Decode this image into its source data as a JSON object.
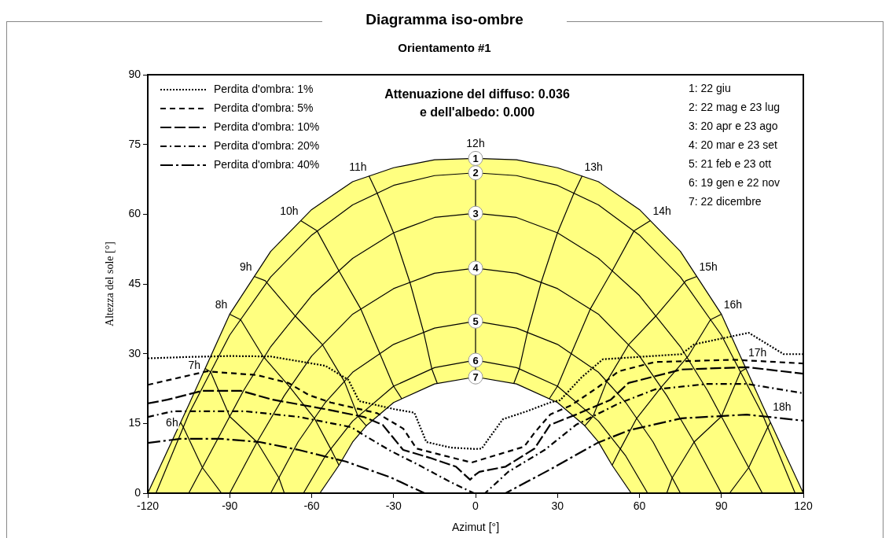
{
  "chart_data": {
    "type": "line",
    "title": "Diagramma iso-ombre",
    "subtitle": "Orientamento #1",
    "xlabel": "Azimut [°]",
    "ylabel": "Altezza del sole [°]",
    "xlim": [
      -120,
      120
    ],
    "xticks": [
      -120,
      -90,
      -60,
      -30,
      0,
      30,
      60,
      90,
      120
    ],
    "ylim": [
      0,
      90
    ],
    "yticks": [
      0,
      15,
      30,
      45,
      60,
      75,
      90
    ],
    "grid": false,
    "legend": "top left",
    "annotations": [
      "Attenuazione del diffuso: 0.036\ne dell'albedo: 0.000",
      "1: 22 giu",
      "2: 22 mag e 23 lug",
      "3: 20 apr e 23 ago",
      "4: 20 mar e 23 set",
      "5: 21 feb e 23 ott",
      "6: 19 gen e 22 nov",
      "7: 22 dicembre"
    ],
    "series": [
      {
        "name": "1",
        "type": "area",
        "color": "#ffff80",
        "x": [
          -120,
          -105,
          -90,
          -75,
          -60,
          -45,
          -30,
          -15,
          0,
          15,
          30,
          45,
          60,
          75,
          90,
          105,
          120
        ],
        "values": [
          0,
          19,
          38.5,
          52,
          61,
          67,
          70,
          71.7,
          72,
          71.7,
          70,
          67,
          61,
          52,
          38.5,
          19,
          0
        ]
      },
      {
        "name": "2",
        "type": "line",
        "color": "#000000",
        "x": [
          -117,
          -105,
          -90,
          -75,
          -60,
          -45,
          -30,
          -15,
          0,
          15,
          30,
          45,
          60,
          75,
          90,
          105,
          117
        ],
        "values": [
          0,
          17,
          34,
          46.5,
          55.5,
          62,
          66.2,
          68.3,
          68.9,
          68.3,
          66.2,
          62,
          55.5,
          46.5,
          34,
          17,
          0
        ]
      },
      {
        "name": "3",
        "type": "line",
        "color": "#000000",
        "x": [
          -105,
          -95,
          -85,
          -75,
          -60,
          -45,
          -30,
          -15,
          0,
          15,
          30,
          45,
          60,
          75,
          85,
          95,
          105
        ],
        "values": [
          0,
          11,
          22,
          31.5,
          42.5,
          50.5,
          56,
          59.3,
          60.2,
          59.3,
          56,
          50.5,
          42.5,
          31.5,
          22,
          11,
          0
        ]
      },
      {
        "name": "4",
        "type": "line",
        "color": "#000000",
        "x": [
          -90,
          -80,
          -70,
          -60,
          -45,
          -30,
          -15,
          0,
          15,
          30,
          45,
          60,
          70,
          80,
          90
        ],
        "values": [
          0,
          11,
          21,
          29.5,
          38.5,
          44,
          47.3,
          48.4,
          47.3,
          44,
          38.5,
          29.5,
          21,
          11,
          0
        ]
      },
      {
        "name": "5",
        "type": "line",
        "color": "#000000",
        "x": [
          -75,
          -65,
          -55,
          -45,
          -30,
          -15,
          0,
          15,
          30,
          45,
          55,
          65,
          75
        ],
        "values": [
          0,
          11,
          19.5,
          26,
          32,
          35.5,
          37,
          35.5,
          32,
          26,
          19.5,
          11,
          0
        ]
      },
      {
        "name": "6",
        "type": "line",
        "color": "#000000",
        "x": [
          -63,
          -55,
          -45,
          -30,
          -15,
          0,
          15,
          30,
          45,
          55,
          63
        ],
        "values": [
          0,
          8,
          15.5,
          23,
          27,
          28.6,
          27,
          23,
          15.5,
          8,
          0
        ]
      },
      {
        "name": "7",
        "type": "area",
        "color": "#ffffff",
        "x": [
          -57,
          -50,
          -45,
          -40,
          -30,
          -15,
          0,
          15,
          30,
          40,
          45,
          50,
          57
        ],
        "values": [
          0,
          6,
          11,
          14.5,
          19.5,
          23.5,
          25,
          23.5,
          19.5,
          14.5,
          11,
          6,
          0
        ]
      },
      {
        "name": "6h",
        "type": "line",
        "color": "#000000",
        "x": [
          -108,
          -107,
          -100,
          -93
        ],
        "values": [
          15.2,
          14.2,
          5.5,
          0
        ]
      },
      {
        "name": "7h",
        "type": "line",
        "color": "#000000",
        "x": [
          -99,
          -97,
          -90,
          -80,
          -72,
          -70
        ],
        "values": [
          26.8,
          26.1,
          16.5,
          11,
          3.3,
          0
        ]
      },
      {
        "name": "8h",
        "type": "line",
        "color": "#000000",
        "x": [
          -90,
          -86,
          -78,
          -68,
          -59,
          -53,
          -50
        ],
        "values": [
          38.5,
          37.3,
          29.6,
          22.8,
          16.1,
          9.5,
          6
        ]
      },
      {
        "name": "9h",
        "type": "line",
        "color": "#000000",
        "x": [
          -81,
          -77,
          -66,
          -56,
          -48,
          -43,
          -40
        ],
        "values": [
          46.6,
          45.7,
          38.1,
          31.9,
          24,
          16.5,
          14.5
        ]
      },
      {
        "name": "10h",
        "type": "line",
        "color": "#000000",
        "x": [
          -64,
          -58,
          -50,
          -42,
          -35,
          -30,
          -27
        ],
        "values": [
          58.6,
          56.4,
          47.8,
          39.6,
          30,
          23,
          20.3
        ]
      },
      {
        "name": "11h",
        "type": "line",
        "color": "#000000",
        "x": [
          -39,
          -36,
          -30,
          -24,
          -19,
          -16,
          -14
        ],
        "values": [
          68.2,
          64.5,
          56,
          45.3,
          34.6,
          26.7,
          23.6
        ]
      },
      {
        "name": "12h",
        "type": "line",
        "color": "#000000",
        "x": [
          0,
          0,
          0,
          0,
          0,
          0,
          0
        ],
        "values": [
          72,
          68.9,
          60.2,
          48.4,
          37,
          28.6,
          25
        ]
      },
      {
        "name": "13h",
        "type": "line",
        "color": "#000000",
        "x": [
          39,
          36,
          30,
          24,
          19,
          16,
          14
        ],
        "values": [
          68.2,
          64.5,
          56,
          45.3,
          34.6,
          26.7,
          23.6
        ]
      },
      {
        "name": "14h",
        "type": "line",
        "color": "#000000",
        "x": [
          64,
          58,
          50,
          42,
          35,
          30,
          27
        ],
        "values": [
          58.6,
          56.4,
          47.8,
          39.6,
          30,
          23,
          20.3
        ]
      },
      {
        "name": "15h",
        "type": "line",
        "color": "#000000",
        "x": [
          81,
          77,
          66,
          56,
          48,
          43,
          40
        ],
        "values": [
          46.6,
          45.7,
          38.1,
          31.9,
          24,
          16.5,
          14.5
        ]
      },
      {
        "name": "16h",
        "type": "line",
        "color": "#000000",
        "x": [
          90,
          86,
          78,
          68,
          59,
          53,
          50
        ],
        "values": [
          38.5,
          37.3,
          29.6,
          22.8,
          16.1,
          9.5,
          6
        ]
      },
      {
        "name": "17h",
        "type": "line",
        "color": "#000000",
        "x": [
          99,
          97,
          90,
          80,
          72,
          70
        ],
        "values": [
          26.8,
          26.1,
          16.5,
          11,
          3.3,
          0
        ]
      },
      {
        "name": "18h",
        "type": "line",
        "color": "#000000",
        "x": [
          108,
          107,
          100,
          93
        ],
        "values": [
          15.2,
          14.2,
          5.5,
          0
        ]
      },
      {
        "name": "Perdita d'ombra: 1%",
        "type": "line",
        "color": "#000000",
        "line_style": "dotted",
        "x": [
          -120,
          -105,
          -90,
          -75,
          -55,
          -46.6,
          -42.6,
          -30,
          -22.4,
          -18,
          -9,
          0,
          2.3,
          4.3,
          10,
          18.7,
          27.3,
          31,
          38.8,
          46.6,
          75.4,
          80,
          100,
          112.8,
          120
        ],
        "values": [
          29,
          29.3,
          29.5,
          29.4,
          27.4,
          24.4,
          19.8,
          18.1,
          17.3,
          11,
          9.8,
          9.5,
          9.6,
          11.3,
          15.9,
          17.6,
          19.5,
          20,
          24.9,
          28.8,
          29.9,
          32,
          34.5,
          29.9,
          29.9
        ]
      },
      {
        "name": "Perdita d'ombra: 5%",
        "type": "line",
        "color": "#000000",
        "line_style": "dashed",
        "x": [
          -120,
          -98.4,
          -80,
          -68.5,
          -61,
          -53,
          -36,
          -26.5,
          -21.6,
          -7,
          -1.4,
          17.8,
          21.6,
          27.3,
          35,
          44.6,
          52.4,
          65.6,
          94.4,
          120
        ],
        "values": [
          23.3,
          26.2,
          25.4,
          23.7,
          21.1,
          19.5,
          17.2,
          13.9,
          9.6,
          7.4,
          6.6,
          10,
          13,
          16.9,
          18.9,
          22.7,
          26.2,
          28.2,
          28.7,
          27.9
        ]
      },
      {
        "name": "Perdita d'ombra: 10%",
        "type": "line",
        "color": "#000000",
        "line_style": "longdash",
        "x": [
          -120,
          -112.8,
          -100.2,
          -85.8,
          -74.2,
          -55.3,
          -40.9,
          -34,
          -26.5,
          -16.7,
          -7.2,
          -2,
          0,
          1.4,
          11,
          21.6,
          27.3,
          36.8,
          49.5,
          56,
          75.4,
          99.3,
          120
        ],
        "values": [
          19.3,
          20.1,
          22,
          22,
          20.1,
          18.1,
          16.4,
          14.7,
          9.3,
          7.6,
          5.7,
          2.9,
          4,
          4.6,
          5.7,
          9.6,
          14.7,
          16.9,
          20.1,
          23.7,
          26.6,
          27.1,
          25.7
        ]
      },
      {
        "name": "Perdita d'ombra: 20%",
        "type": "line",
        "color": "#000000",
        "line_style": "dashdot",
        "x": [
          -120,
          -110.8,
          -98.4,
          -84,
          -64.7,
          -45.5,
          -40.9,
          -31.1,
          -21.6,
          -9.2,
          -0.6,
          3.5,
          12,
          25.3,
          36.8,
          52.4,
          65.6,
          84.9,
          99.3,
          120
        ],
        "values": [
          16.4,
          17.6,
          17.6,
          17.6,
          16.4,
          14.2,
          12.5,
          9.1,
          6.3,
          2.4,
          0,
          0,
          4.6,
          9.3,
          14.7,
          19.3,
          22.3,
          23.5,
          23.5,
          21.5
        ]
      },
      {
        "name": "Perdita d'ombra: 40%",
        "type": "line",
        "color": "#000000",
        "line_style": "longdashdot",
        "x": [
          -120,
          -108,
          -93.5,
          -79,
          -64.7,
          -47.5,
          -31.1,
          -18.7,
          11,
          27.3,
          44.6,
          56,
          75.4,
          99.3,
          120
        ],
        "values": [
          10.8,
          11.7,
          11.7,
          11,
          9.3,
          6.8,
          3.4,
          0,
          0,
          5.1,
          10.8,
          13.5,
          16.1,
          16.9,
          15.6
        ]
      }
    ]
  }
}
